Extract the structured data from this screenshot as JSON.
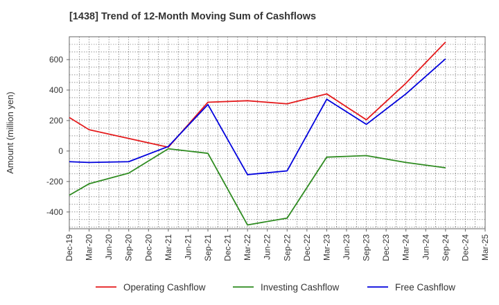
{
  "chart_data": {
    "type": "line",
    "title": "[1438]  Trend of 12-Month Moving Sum of Cashflows",
    "xlabel": "",
    "ylabel": "Amount (million yen)",
    "categories": [
      "Dec-19",
      "Mar-20",
      "Jun-20",
      "Sep-20",
      "Dec-20",
      "Mar-21",
      "Jun-21",
      "Sep-21",
      "Dec-21",
      "Mar-22",
      "Jun-22",
      "Sep-22",
      "Dec-22",
      "Mar-23",
      "Jun-23",
      "Sep-23",
      "Dec-23",
      "Mar-24",
      "Jun-24",
      "Sep-24",
      "Dec-24",
      "Mar-25"
    ],
    "ylim": [
      -510,
      750
    ],
    "yticks": [
      -400,
      -200,
      0,
      200,
      400,
      600
    ],
    "grid": true,
    "legend_position": "bottom",
    "series": [
      {
        "name": "Operating Cashflow",
        "color": "#e41a1c",
        "values": [
          220,
          140,
          null,
          null,
          null,
          25,
          null,
          320,
          null,
          330,
          null,
          310,
          null,
          375,
          null,
          205,
          null,
          445,
          null,
          715,
          null,
          null
        ]
      },
      {
        "name": "Investing Cashflow",
        "color": "#2e8b20",
        "values": [
          -290,
          -215,
          null,
          -145,
          null,
          15,
          null,
          -15,
          null,
          -485,
          null,
          -440,
          null,
          -40,
          null,
          -30,
          null,
          -75,
          null,
          -110,
          null,
          null
        ]
      },
      {
        "name": "Free Cashflow",
        "color": "#0000dd",
        "values": [
          -70,
          -75,
          null,
          -70,
          null,
          30,
          null,
          305,
          null,
          -155,
          null,
          -130,
          null,
          340,
          null,
          175,
          null,
          375,
          null,
          605,
          null,
          null
        ]
      }
    ]
  }
}
